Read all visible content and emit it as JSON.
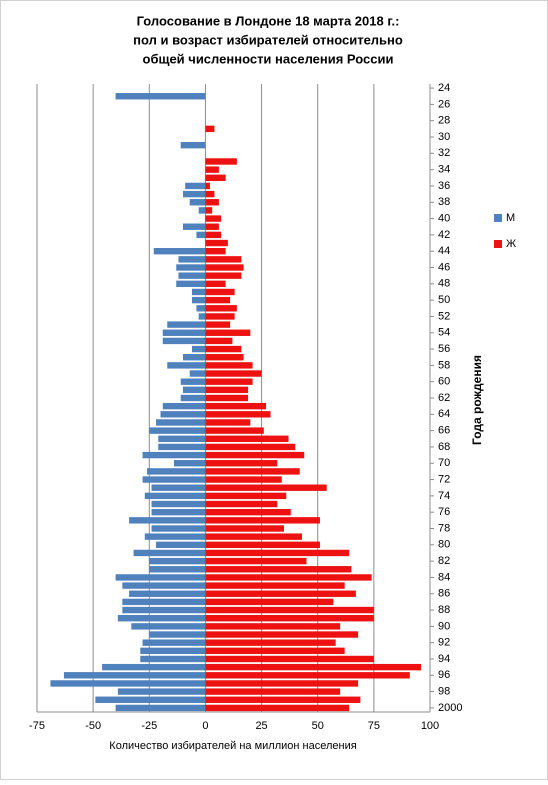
{
  "chart_data": {
    "type": "barh_pyramid",
    "title": [
      "Голосование в Лондоне 18 марта 2018 г.:",
      "пол и возраст избирателей относительно",
      "общей численности населения России"
    ],
    "x_label": "Количество избирателей на миллион населения",
    "y_label": "Года рождения",
    "categories": [
      "24",
      null,
      "26",
      null,
      "28",
      null,
      "30",
      null,
      "32",
      null,
      "34",
      null,
      "36",
      null,
      "38",
      null,
      "40",
      null,
      "42",
      null,
      "44",
      null,
      "46",
      null,
      "48",
      null,
      "50",
      null,
      "52",
      null,
      "54",
      null,
      "56",
      null,
      "58",
      null,
      "60",
      null,
      "62",
      null,
      "64",
      null,
      "66",
      null,
      "68",
      null,
      "70",
      null,
      "72",
      null,
      "74",
      null,
      "76",
      null,
      "78",
      null,
      "80",
      null,
      "82",
      null,
      "84",
      null,
      "86",
      null,
      "88",
      null,
      "90",
      null,
      "92",
      null,
      "94",
      null,
      "96",
      null,
      "98",
      null,
      "2000"
    ],
    "series": [
      {
        "name": "М",
        "color": "#4f81bd",
        "values": [
          0,
          -40,
          0,
          0,
          0,
          0,
          0,
          -11,
          0,
          0,
          0,
          0,
          -9,
          -10,
          -7,
          -3,
          0,
          -10,
          -4,
          0,
          -23,
          -12,
          -13,
          -12,
          -13,
          -6,
          -6,
          -4,
          -3,
          -17,
          -19,
          -19,
          -6,
          -10,
          -17,
          -7,
          -11,
          -10,
          -11,
          -19,
          -20,
          -22,
          -25,
          -21,
          -21,
          -28,
          -14,
          -26,
          -28,
          -24,
          -27,
          -24,
          -24,
          -34,
          -24,
          -27,
          -22,
          -32,
          -25,
          -25,
          -40,
          -37,
          -34,
          -37,
          -37,
          -39,
          -33,
          -25,
          -28,
          -29,
          -29,
          -46,
          -63,
          -69,
          -39,
          -49,
          -40
        ]
      },
      {
        "name": "Ж",
        "color": "#ee1111",
        "values": [
          0,
          0,
          0,
          0,
          0,
          4,
          0,
          0,
          0,
          14,
          6,
          9,
          2,
          4,
          6,
          3,
          7,
          6,
          7,
          10,
          9,
          16,
          17,
          16,
          9,
          13,
          11,
          14,
          13,
          11,
          20,
          12,
          16,
          17,
          21,
          25,
          21,
          19,
          19,
          27,
          29,
          20,
          26,
          37,
          40,
          44,
          32,
          42,
          34,
          54,
          36,
          32,
          38,
          51,
          35,
          43,
          51,
          64,
          45,
          65,
          74,
          62,
          67,
          57,
          75,
          75,
          60,
          68,
          58,
          62,
          75,
          96,
          91,
          68,
          60,
          69,
          64
        ]
      }
    ],
    "xlim": [
      -75,
      100
    ],
    "xticks": [
      -75,
      -50,
      -25,
      0,
      25,
      50,
      75,
      100
    ],
    "grid": true,
    "legend": "right"
  }
}
